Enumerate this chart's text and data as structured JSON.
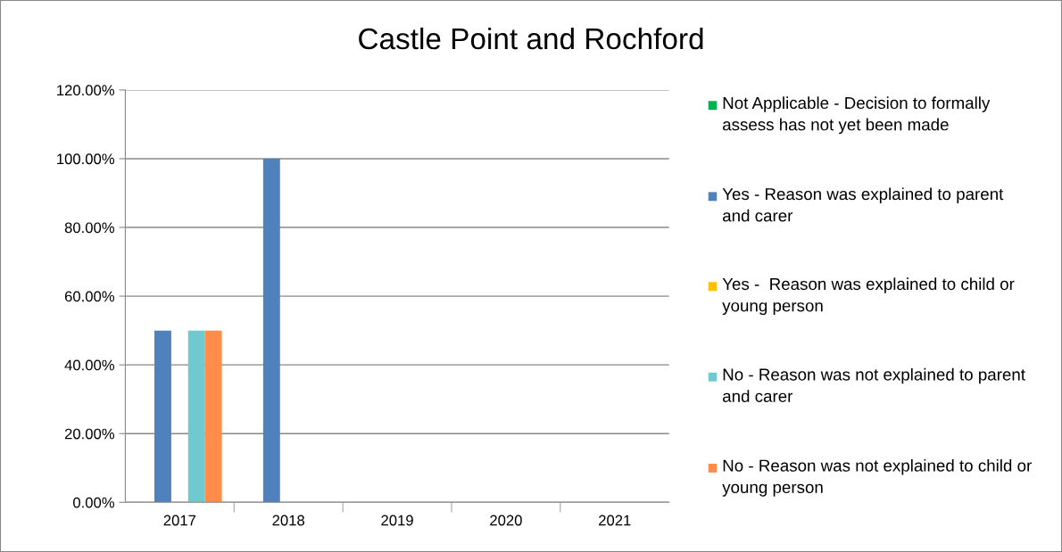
{
  "chart_data": {
    "type": "bar",
    "title": "Castle Point and Rochford",
    "categories": [
      "2017",
      "2018",
      "2019",
      "2020",
      "2021"
    ],
    "series": [
      {
        "name": "Not Applicable - Decision to formally assess has not yet been made",
        "color": "#00b050",
        "values": [
          0,
          0,
          0,
          0,
          0
        ]
      },
      {
        "name": "Yes - Reason was explained to parent and carer",
        "color": "#4f81bd",
        "values": [
          50,
          100,
          0,
          0,
          0
        ]
      },
      {
        "name": "Yes -  Reason was explained to child or young person",
        "color": "#ffc000",
        "values": [
          0,
          0,
          0,
          0,
          0
        ]
      },
      {
        "name": "No - Reason was not explained to parent and carer",
        "color": "#6fc9cf",
        "values": [
          50,
          0,
          0,
          0,
          0
        ]
      },
      {
        "name": "No - Reason was not explained to child or young person",
        "color": "#ff8c4a",
        "values": [
          50,
          0,
          0,
          0,
          0
        ]
      }
    ],
    "ylim": [
      0,
      120
    ],
    "yticks": [
      {
        "value": 0,
        "label": "0.00%"
      },
      {
        "value": 20,
        "label": "20.00%"
      },
      {
        "value": 40,
        "label": "40.00%"
      },
      {
        "value": 60,
        "label": "60.00%"
      },
      {
        "value": 80,
        "label": "80.00%"
      },
      {
        "value": 100,
        "label": "100.00%"
      },
      {
        "value": 120,
        "label": "120.00%"
      }
    ],
    "grid": "y",
    "legend": "right"
  }
}
